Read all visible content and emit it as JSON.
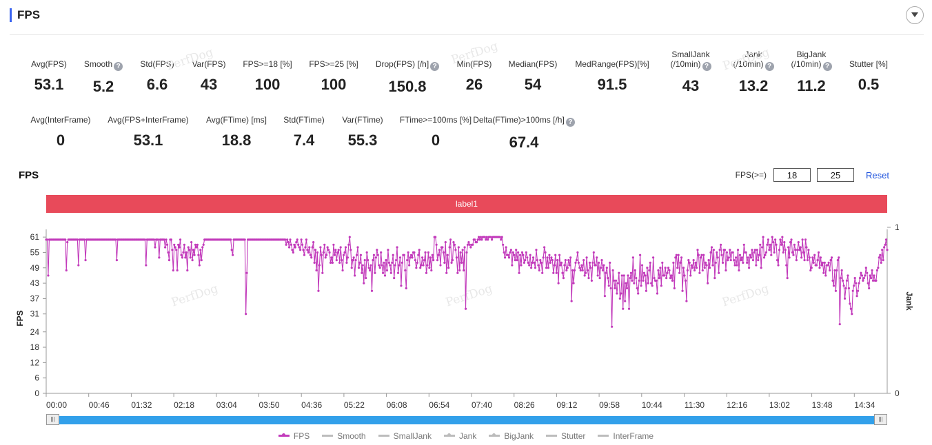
{
  "header": {
    "title": "FPS"
  },
  "metrics_row1": [
    {
      "label": "Avg(FPS)",
      "value": "53.1",
      "help": false
    },
    {
      "label": "Smooth",
      "value": "5.2",
      "help": true
    },
    {
      "label": "Std(FPS)",
      "value": "6.6",
      "help": false
    },
    {
      "label": "Var(FPS)",
      "value": "43",
      "help": false
    },
    {
      "label": "FPS>=18 [%]",
      "value": "100",
      "help": false
    },
    {
      "label": "FPS>=25 [%]",
      "value": "100",
      "help": false
    },
    {
      "label": "Drop(FPS) [/h]",
      "value": "150.8",
      "help": true
    },
    {
      "label": "Min(FPS)",
      "value": "26",
      "help": false
    },
    {
      "label": "Median(FPS)",
      "value": "54",
      "help": false
    },
    {
      "label": "MedRange(FPS)[%]",
      "value": "91.5",
      "help": false
    },
    {
      "label": "SmallJank\n(/10min)",
      "value": "43",
      "help": true
    },
    {
      "label": "Jank\n(/10min)",
      "value": "13.2",
      "help": true
    },
    {
      "label": "BigJank\n(/10min)",
      "value": "11.2",
      "help": true
    },
    {
      "label": "Stutter [%]",
      "value": "0.5",
      "help": false
    }
  ],
  "metrics_row2": [
    {
      "label": "Avg(InterFrame)",
      "value": "0",
      "help": false
    },
    {
      "label": "Avg(FPS+InterFrame)",
      "value": "53.1",
      "help": false
    },
    {
      "label": "Avg(FTime) [ms]",
      "value": "18.8",
      "help": false
    },
    {
      "label": "Std(FTime)",
      "value": "7.4",
      "help": false
    },
    {
      "label": "Var(FTime)",
      "value": "55.3",
      "help": false
    },
    {
      "label": "FTime>=100ms [%]",
      "value": "0",
      "help": false
    },
    {
      "label": "Delta(FTime)>100ms [/h]",
      "value": "67.4",
      "help": true
    }
  ],
  "chart_section": {
    "title": "FPS",
    "threshold_label": "FPS(>=)",
    "threshold_low": "18",
    "threshold_high": "25",
    "reset_label": "Reset",
    "label_bar": "label1",
    "watermark": "PerfDog"
  },
  "chart_data": {
    "type": "line",
    "xlabel": "",
    "ylabel": "FPS",
    "y2label": "Jank",
    "ylim": [
      0,
      64
    ],
    "y_ticks": [
      "0",
      "6",
      "12",
      "18",
      "24",
      "31",
      "37",
      "43",
      "49",
      "55",
      "61"
    ],
    "y2_ticks": [
      "0",
      "1"
    ],
    "x_ticks": [
      "00:00",
      "00:46",
      "01:32",
      "02:18",
      "03:04",
      "03:50",
      "04:36",
      "05:22",
      "06:08",
      "06:54",
      "07:40",
      "08:26",
      "09:12",
      "09:58",
      "10:44",
      "11:30",
      "12:16",
      "13:02",
      "13:48",
      "14:34"
    ],
    "series": [
      {
        "name": "FPS",
        "color": "#c23bbb",
        "values": [
          60,
          60,
          46,
          60,
          60,
          60,
          60,
          60,
          60,
          60,
          60,
          60,
          60,
          60,
          60,
          60,
          60,
          60,
          60,
          60,
          48,
          59,
          60,
          60,
          60,
          60,
          60,
          60,
          60,
          60,
          60,
          60,
          50,
          60,
          60,
          60,
          60,
          60,
          60,
          52,
          60,
          60,
          60,
          60,
          60,
          60,
          60,
          60,
          60,
          60,
          60,
          60,
          60,
          60,
          60,
          60,
          60,
          60,
          60,
          60,
          60,
          60,
          60,
          60,
          60,
          60,
          60,
          60,
          60,
          60,
          52,
          60,
          60,
          60,
          60,
          60,
          60,
          60,
          60,
          60,
          60,
          60,
          60,
          60,
          60,
          60,
          60,
          60,
          60,
          60,
          60,
          60,
          60,
          60,
          60,
          60,
          60,
          60,
          60,
          50,
          60,
          60,
          60,
          60,
          60,
          60,
          60,
          60,
          57,
          60,
          60,
          60,
          53,
          60,
          60,
          60,
          60,
          60,
          57,
          60,
          58,
          55,
          52,
          60,
          60,
          56,
          48,
          58,
          57,
          56,
          48,
          58,
          57,
          60,
          54,
          53,
          55,
          58,
          53,
          55,
          48,
          57,
          56,
          53,
          59,
          52,
          56,
          54,
          58,
          57,
          58,
          54,
          50,
          56,
          52,
          57,
          58,
          60,
          60,
          60,
          60,
          60,
          60,
          60,
          60,
          60,
          60,
          60,
          60,
          60,
          60,
          60,
          60,
          60,
          60,
          60,
          60,
          60,
          60,
          60,
          60,
          60,
          60,
          60,
          56,
          54,
          60,
          60,
          60,
          60,
          60,
          60,
          60,
          60,
          60,
          60,
          60,
          60,
          31,
          47,
          60,
          60,
          60,
          60,
          60,
          60,
          60,
          60,
          60,
          60,
          60,
          60,
          60,
          60,
          60,
          60,
          60,
          60,
          60,
          60,
          60,
          60,
          60,
          60,
          60,
          60,
          60,
          60,
          60,
          60,
          60,
          60,
          60,
          60,
          60,
          60,
          60,
          60,
          58,
          60,
          59,
          57,
          60,
          58,
          56,
          55,
          58,
          57,
          59,
          60,
          58,
          57,
          56,
          60,
          58,
          56,
          54,
          57,
          60,
          56,
          55,
          57,
          54,
          53,
          57,
          59,
          51,
          56,
          48,
          55,
          40,
          50,
          57,
          54,
          47,
          55,
          58,
          53,
          54,
          57,
          56,
          55,
          51,
          53,
          51,
          58,
          54,
          56,
          52,
          55,
          56,
          51,
          57,
          52,
          48,
          54,
          55,
          57,
          51,
          53,
          58,
          61,
          56,
          49,
          52,
          53,
          46,
          52,
          54,
          57,
          49,
          51,
          54,
          47,
          50,
          43,
          52,
          45,
          55,
          52,
          49,
          48,
          50,
          40,
          52,
          54,
          47,
          53,
          56,
          54,
          50,
          49,
          55,
          50,
          47,
          51,
          46,
          52,
          48,
          56,
          51,
          50,
          47,
          51,
          54,
          45,
          50,
          52,
          57,
          47,
          50,
          53,
          42,
          51,
          54,
          54,
          48,
          41,
          52,
          55,
          50,
          53,
          54,
          53,
          55,
          55,
          52,
          49,
          51,
          54,
          56,
          49,
          50,
          53,
          50,
          52,
          55,
          47,
          50,
          55,
          49,
          53,
          48,
          54,
          52,
          61,
          61,
          58,
          52,
          54,
          56,
          50,
          57,
          57,
          55,
          51,
          59,
          47,
          54,
          49,
          57,
          60,
          51,
          52,
          59,
          58,
          56,
          53,
          47,
          57,
          48,
          55,
          51,
          56,
          48,
          57,
          33,
          55,
          58,
          59,
          58,
          57,
          58,
          58,
          60,
          60,
          59,
          59,
          60,
          61,
          60,
          61,
          60,
          61,
          61,
          61,
          60,
          61,
          60,
          61,
          61,
          61,
          60,
          61,
          61,
          61,
          61,
          61,
          61,
          61,
          61,
          60,
          61,
          58,
          55,
          53,
          57,
          54,
          54,
          53,
          55,
          56,
          50,
          55,
          54,
          52,
          56,
          52,
          55,
          47,
          54,
          50,
          55,
          54,
          51,
          52,
          55,
          53,
          51,
          50,
          54,
          49,
          51,
          53,
          51,
          49,
          56,
          52,
          50,
          48,
          52,
          51,
          47,
          53,
          57,
          55,
          49,
          53,
          49,
          54,
          51,
          53,
          52,
          47,
          50,
          54,
          47,
          52,
          43,
          54,
          50,
          51,
          47,
          45,
          50,
          52,
          48,
          49,
          52,
          50,
          53,
          36,
          48,
          43,
          48,
          51,
          52,
          55,
          51,
          49,
          48,
          50,
          48,
          52,
          46,
          47,
          53,
          48,
          45,
          51,
          49,
          44,
          51,
          55,
          50,
          50,
          53,
          46,
          51,
          45,
          49,
          52,
          48,
          50,
          38,
          47,
          49,
          45,
          42,
          51,
          41,
          26,
          48,
          44,
          41,
          44,
          39,
          43,
          47,
          37,
          39,
          46,
          33,
          46,
          36,
          43,
          41,
          46,
          33,
          45,
          47,
          44,
          53,
          43,
          48,
          45,
          41,
          39,
          44,
          54,
          42,
          50,
          44,
          47,
          46,
          40,
          49,
          43,
          48,
          51,
          43,
          42,
          53,
          45,
          44,
          44,
          39,
          48,
          45,
          49,
          42,
          51,
          46,
          46,
          49,
          45,
          47,
          49,
          48,
          45,
          46,
          44,
          51,
          41,
          53,
          54,
          49,
          54,
          47,
          51,
          53,
          40,
          49,
          46,
          44,
          36,
          48,
          52,
          51,
          46,
          50,
          49,
          52,
          48,
          51,
          49,
          56,
          54,
          47,
          53,
          54,
          48,
          54,
          49,
          51,
          50,
          43,
          52,
          49,
          55,
          57,
          50,
          56,
          45,
          51,
          55,
          53,
          47,
          56,
          58,
          54,
          51,
          56,
          56,
          48,
          55,
          52,
          53,
          56,
          52,
          55,
          55,
          52,
          50,
          53,
          50,
          56,
          48,
          54,
          52,
          53,
          51,
          58,
          55,
          55,
          51,
          53,
          49,
          54,
          53,
          56,
          52,
          55,
          56,
          50,
          56,
          52,
          54,
          58,
          49,
          57,
          61,
          53,
          54,
          55,
          58,
          60,
          56,
          58,
          54,
          61,
          59,
          55,
          60,
          58,
          52,
          50,
          56,
          60,
          58,
          61,
          55,
          59,
          56,
          50,
          45,
          57,
          53,
          59,
          60,
          55,
          54,
          58,
          56,
          52,
          56,
          59,
          56,
          57,
          53,
          60,
          55,
          52,
          60,
          57,
          52,
          56,
          53,
          48,
          49,
          53,
          51,
          54,
          50,
          50,
          52,
          55,
          49,
          53,
          50,
          51,
          47,
          51,
          46,
          50,
          50,
          51,
          48,
          52,
          53,
          44,
          42,
          48,
          40,
          48,
          52,
          53,
          27,
          45,
          48,
          44,
          42,
          37,
          41,
          44,
          46,
          41,
          35,
          33,
          31,
          40,
          42,
          45,
          43,
          38,
          40,
          43,
          45,
          47,
          46,
          44,
          45,
          46,
          49,
          47,
          43,
          41,
          46,
          45,
          48,
          44,
          46,
          44,
          44,
          48,
          49,
          53,
          54,
          51,
          56,
          52,
          57,
          58,
          60,
          56
        ]
      }
    ]
  },
  "legend": [
    {
      "name": "FPS",
      "color": "#c23bbb",
      "marker": true
    },
    {
      "name": "Smooth",
      "color": "#bcbcbc",
      "marker": false
    },
    {
      "name": "SmallJank",
      "color": "#bcbcbc",
      "marker": false
    },
    {
      "name": "Jank",
      "color": "#bcbcbc",
      "marker": true
    },
    {
      "name": "BigJank",
      "color": "#bcbcbc",
      "marker": true
    },
    {
      "name": "Stutter",
      "color": "#bcbcbc",
      "marker": false
    },
    {
      "name": "InterFrame",
      "color": "#bcbcbc",
      "marker": false
    }
  ]
}
